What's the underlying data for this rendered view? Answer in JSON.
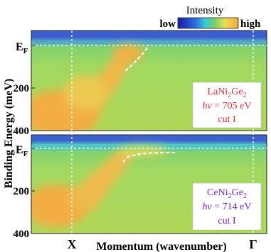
{
  "chart_data": {
    "type": "heatmap",
    "colorbar": {
      "title": "Intensity",
      "low_label": "low",
      "high_label": "high",
      "colors": [
        "#1a1aa0",
        "#2f6fe0",
        "#3cc8d8",
        "#6fd070",
        "#f0dc50",
        "#f2a73a"
      ]
    },
    "xlabel": "Momentum (wavenumber)",
    "x_ticks": [
      "X",
      "Γ"
    ],
    "ylabel": "Binding Energy (meV)",
    "y_ticks": [
      {
        "label": "E",
        "sub": "F",
        "value": 0
      },
      {
        "label": "200",
        "value": 200
      },
      {
        "label": "400",
        "value": 400
      }
    ],
    "ylim": [
      400,
      -50
    ],
    "panels": [
      {
        "annotation": {
          "formula": {
            "base": "LaNi",
            "sub1": "2",
            "mid": "Ge",
            "sub2": "2"
          },
          "energy": {
            "symbol": "hν",
            "value": " = 705 eV"
          },
          "cut": "cut I",
          "color": "#e8343a"
        },
        "dispersion": [
          {
            "k": 0.4,
            "E": 120
          },
          {
            "k": 0.43,
            "E": 90
          },
          {
            "k": 0.46,
            "E": 55
          },
          {
            "k": 0.48,
            "E": 30
          },
          {
            "k": 0.5,
            "E": 0
          }
        ]
      },
      {
        "annotation": {
          "formula": {
            "base": "CeNi",
            "sub1": "2",
            "mid": "Ge",
            "sub2": "2"
          },
          "energy": {
            "symbol": "hν",
            "value": " = 714 eV"
          },
          "cut": "cut I",
          "color": "#7a28c8"
        },
        "dispersion": [
          {
            "k": 0.39,
            "E": 65
          },
          {
            "k": 0.41,
            "E": 40
          },
          {
            "k": 0.45,
            "E": 28
          },
          {
            "k": 0.5,
            "E": 22
          },
          {
            "k": 0.56,
            "E": 20
          },
          {
            "k": 0.62,
            "E": 20
          }
        ]
      }
    ],
    "grid": false
  }
}
